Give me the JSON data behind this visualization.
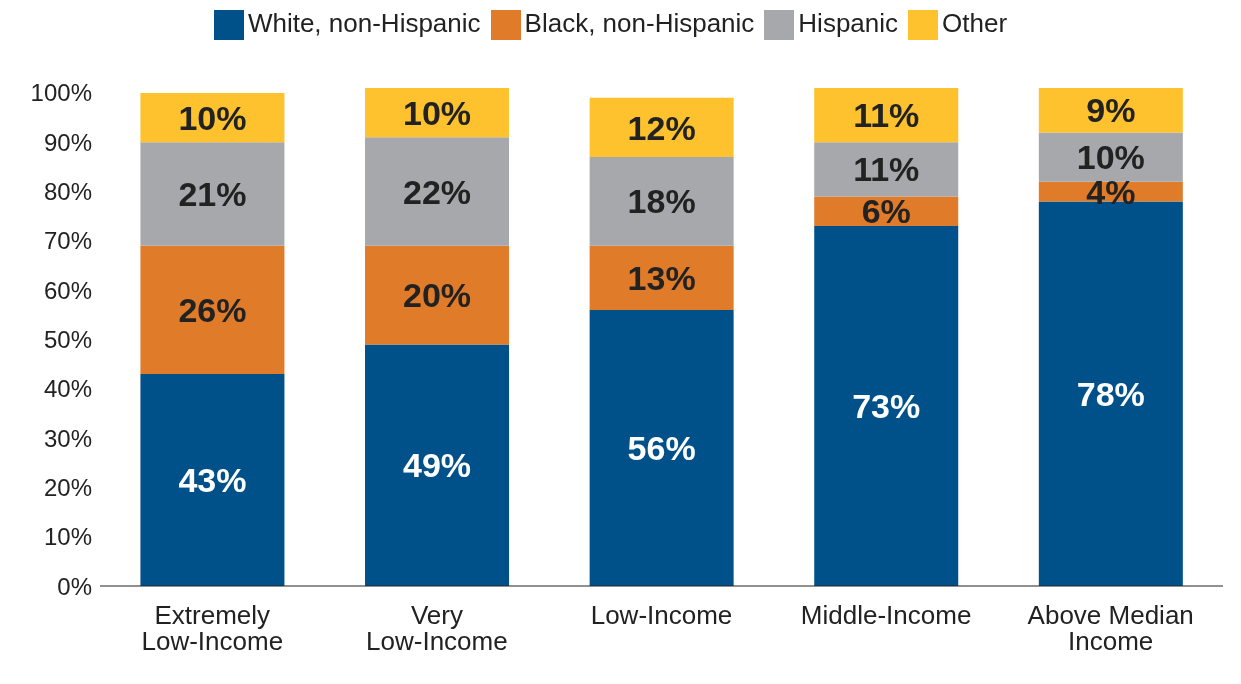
{
  "chart_data": {
    "type": "bar",
    "stacked": true,
    "categories": [
      "Extremely Low-Income",
      "Very Low-Income",
      "Low-Income",
      "Middle-Income",
      "Above Median Income"
    ],
    "series": [
      {
        "name": "White, non-Hispanic",
        "color": "#00508a",
        "values": [
          43,
          49,
          56,
          73,
          78
        ],
        "value_labels": [
          "43%",
          "49%",
          "56%",
          "73%",
          "78%"
        ]
      },
      {
        "name": "Black, non-Hispanic",
        "color": "#e07b2a",
        "values": [
          26,
          20,
          13,
          6,
          4
        ],
        "value_labels": [
          "26%",
          "20%",
          "13%",
          "6%",
          "4%"
        ]
      },
      {
        "name": "Hispanic",
        "color": "#a7a8ab",
        "values": [
          21,
          22,
          18,
          11,
          10
        ],
        "value_labels": [
          "21%",
          "22%",
          "18%",
          "11%",
          "10%"
        ]
      },
      {
        "name": "Other",
        "color": "#fdc22d",
        "values": [
          10,
          10,
          12,
          11,
          9
        ],
        "value_labels": [
          "10%",
          "10%",
          "12%",
          "11%",
          "9%"
        ]
      }
    ],
    "ylim": [
      0,
      101
    ],
    "yticks": [
      {
        "value": 0,
        "label": "0%"
      },
      {
        "value": 10,
        "label": "10%"
      },
      {
        "value": 20,
        "label": "20%"
      },
      {
        "value": 30,
        "label": "30%"
      },
      {
        "value": 40,
        "label": "40%"
      },
      {
        "value": 50,
        "label": "50%"
      },
      {
        "value": 60,
        "label": "60%"
      },
      {
        "value": 70,
        "label": "70%"
      },
      {
        "value": 80,
        "label": "80%"
      },
      {
        "value": 90,
        "label": "90%"
      },
      {
        "value": 100,
        "label": "100%"
      }
    ],
    "grid": false,
    "legend": "top"
  }
}
